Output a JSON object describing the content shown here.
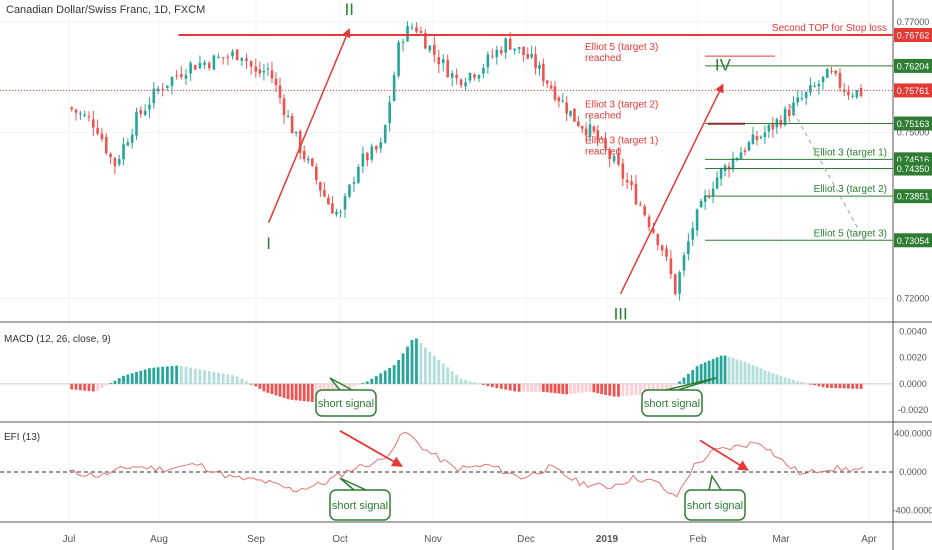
{
  "header": {
    "title": "Canadian Dollar/Swiss Franc, 1D, FXCM"
  },
  "macd": {
    "label": "MACD (12, 26, close, 9)",
    "ticks": [
      "0.0040",
      "0.0020",
      "0.0000",
      "-0.0020"
    ],
    "signal_text": "short signal"
  },
  "efi": {
    "label": "EFI (13)",
    "ticks": [
      "400.0000",
      "0.0000",
      "-400.0000"
    ],
    "signal_text": "short signal"
  },
  "chart_data": {
    "type": "candlestick",
    "symbol": "CADCHF",
    "timeframe": "1D",
    "x_ticks": [
      "Jul",
      "Aug",
      "Sep",
      "Oct",
      "Nov",
      "Dec",
      "2019",
      "Feb",
      "Mar",
      "Apr"
    ],
    "y_ticks": [
      "0.77000",
      "0.75000",
      "0.72000"
    ],
    "ylim": [
      0.7165,
      0.7725
    ],
    "current_price": "0.75761",
    "price_levels": [
      {
        "price": 0.76762,
        "text": "0.76762",
        "label": "Second TOP for Stop loss",
        "color": "#e53935"
      },
      {
        "price": 0.76204,
        "text": "0.76204",
        "label": "",
        "color": "#2e7d32"
      },
      {
        "price": 0.75163,
        "text": "0.75163",
        "label": "",
        "color": "#2e7d32"
      },
      {
        "price": 0.74516,
        "text": "0.74516",
        "label": "Elliot 3 (target 1)",
        "color": "#2e7d32"
      },
      {
        "price": 0.7435,
        "text": "0.74350",
        "label": "",
        "color": "#2e7d32"
      },
      {
        "price": 0.73851,
        "text": "0.73851",
        "label": "Elliot 3 (target 2)",
        "color": "#2e7d32"
      },
      {
        "price": 0.73054,
        "text": "0.73054",
        "label": "Elliot 5 (target 3)",
        "color": "#2e7d32"
      }
    ],
    "reached_notes": [
      {
        "line1": "Elliot 5 (target 3)",
        "line2": "reached",
        "price": 0.76204
      },
      {
        "line1": "Elliot 3 (target 2)",
        "line2": "reached",
        "price": 0.75163
      },
      {
        "line1": "Elliot 3 (target 1)",
        "line2": "reached",
        "price": 0.74516
      }
    ],
    "waves": [
      {
        "label": "I",
        "month": 2.15,
        "price": 0.7337
      },
      {
        "label": "II",
        "month": 3.1,
        "price": 0.7698
      },
      {
        "label": "III",
        "month": 6.15,
        "price": 0.7209
      },
      {
        "label": "IV",
        "month": 7.3,
        "price": 0.7598
      }
    ],
    "close_path": [
      [
        0.0,
        0.7545
      ],
      [
        0.3,
        0.7515
      ],
      [
        0.5,
        0.744
      ],
      [
        0.75,
        0.7525
      ],
      [
        1.0,
        0.758
      ],
      [
        1.3,
        0.762
      ],
      [
        1.55,
        0.763
      ],
      [
        1.85,
        0.7645
      ],
      [
        2.0,
        0.7605
      ],
      [
        2.15,
        0.7615
      ],
      [
        2.5,
        0.748
      ],
      [
        2.85,
        0.7375
      ],
      [
        3.0,
        0.7348
      ],
      [
        3.2,
        0.7445
      ],
      [
        3.45,
        0.7475
      ],
      [
        3.65,
        0.7672
      ],
      [
        3.8,
        0.7695
      ],
      [
        4.0,
        0.7645
      ],
      [
        4.25,
        0.7595
      ],
      [
        4.5,
        0.7615
      ],
      [
        4.8,
        0.7665
      ],
      [
        5.1,
        0.7625
      ],
      [
        5.35,
        0.7575
      ],
      [
        5.6,
        0.7525
      ],
      [
        5.85,
        0.7495
      ],
      [
        6.1,
        0.744
      ],
      [
        6.35,
        0.7375
      ],
      [
        6.6,
        0.7295
      ],
      [
        6.75,
        0.7215
      ],
      [
        6.95,
        0.7335
      ],
      [
        7.2,
        0.7415
      ],
      [
        7.5,
        0.7465
      ],
      [
        7.85,
        0.7505
      ],
      [
        8.2,
        0.7555
      ],
      [
        8.55,
        0.7605
      ],
      [
        8.75,
        0.7575
      ],
      [
        8.95,
        0.7572
      ]
    ],
    "macd_hist": [
      [
        0.0,
        -0.0004
      ],
      [
        0.3,
        -0.0006
      ],
      [
        0.6,
        0.0006
      ],
      [
        0.9,
        0.0012
      ],
      [
        1.2,
        0.0014
      ],
      [
        1.5,
        0.001
      ],
      [
        1.8,
        0.0006
      ],
      [
        2.1,
        -0.0006
      ],
      [
        2.4,
        -0.0012
      ],
      [
        2.7,
        -0.0014
      ],
      [
        3.0,
        -0.0006
      ],
      [
        3.3,
        0.0002
      ],
      [
        3.6,
        0.0015
      ],
      [
        3.8,
        0.0036
      ],
      [
        4.0,
        0.0022
      ],
      [
        4.3,
        0.0004
      ],
      [
        4.6,
        -0.0002
      ],
      [
        4.9,
        -0.0006
      ],
      [
        5.2,
        -0.0006
      ],
      [
        5.5,
        -0.0008
      ],
      [
        5.8,
        -0.0006
      ],
      [
        6.1,
        -0.001
      ],
      [
        6.4,
        -0.0008
      ],
      [
        6.7,
        -0.0004
      ],
      [
        7.0,
        0.0014
      ],
      [
        7.3,
        0.0022
      ],
      [
        7.6,
        0.0016
      ],
      [
        7.9,
        0.0008
      ],
      [
        8.2,
        0.0002
      ],
      [
        8.5,
        -0.0003
      ],
      [
        8.95,
        -0.0004
      ]
    ],
    "efi_path": [
      [
        0.0,
        0
      ],
      [
        0.35,
        -40
      ],
      [
        0.7,
        60
      ],
      [
        1.05,
        30
      ],
      [
        1.4,
        80
      ],
      [
        1.75,
        -60
      ],
      [
        2.1,
        -100
      ],
      [
        2.45,
        -190
      ],
      [
        2.8,
        -120
      ],
      [
        3.15,
        40
      ],
      [
        3.45,
        120
      ],
      [
        3.7,
        420
      ],
      [
        3.95,
        210
      ],
      [
        4.25,
        30
      ],
      [
        4.6,
        70
      ],
      [
        4.95,
        -60
      ],
      [
        5.3,
        50
      ],
      [
        5.65,
        -110
      ],
      [
        6.0,
        -160
      ],
      [
        6.3,
        -60
      ],
      [
        6.55,
        -110
      ],
      [
        6.75,
        -280
      ],
      [
        6.95,
        60
      ],
      [
        7.2,
        220
      ],
      [
        7.45,
        260
      ],
      [
        7.75,
        320
      ],
      [
        8.0,
        120
      ],
      [
        8.25,
        -30
      ],
      [
        8.5,
        40
      ],
      [
        8.95,
        20
      ]
    ],
    "macd_ylim": [
      -0.0026,
      0.0044
    ],
    "efi_ylim": [
      -480,
      480
    ]
  }
}
